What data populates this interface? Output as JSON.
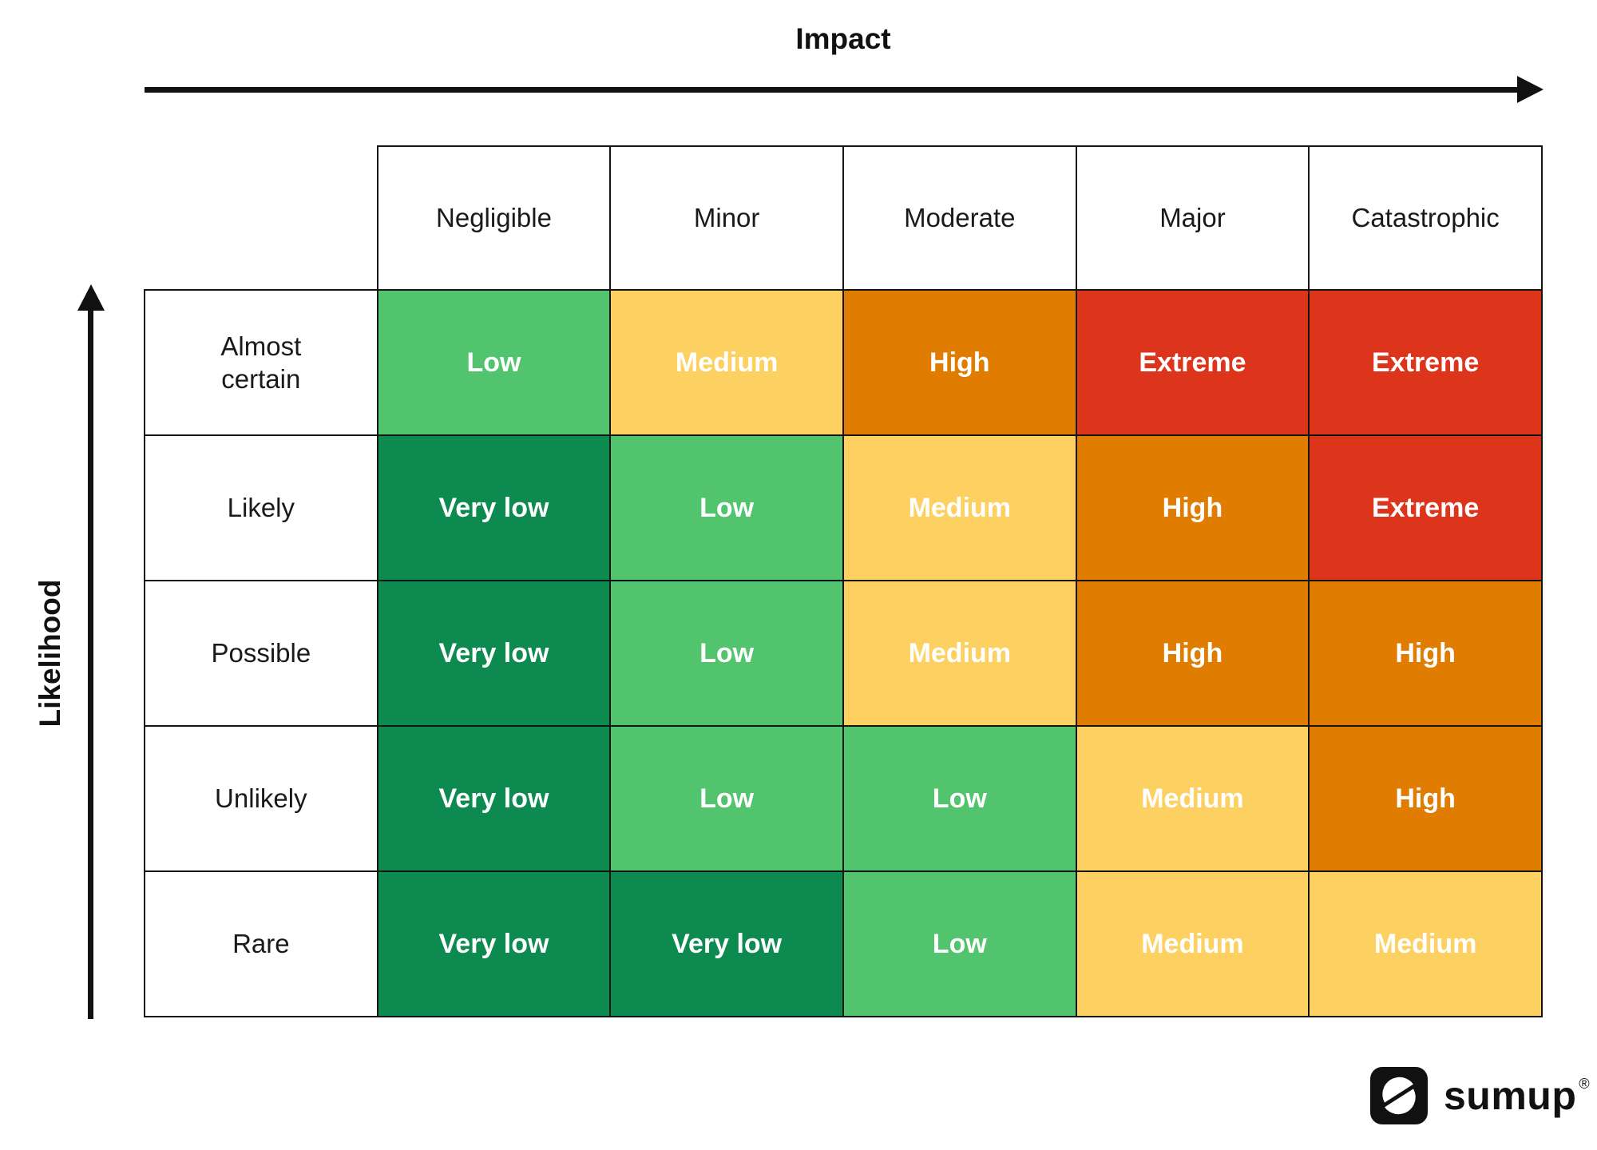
{
  "axes": {
    "x_title": "Impact",
    "y_title": "Likelihood"
  },
  "matrix": {
    "column_headers": [
      "Negligible",
      "Minor",
      "Moderate",
      "Major",
      "Catastrophic"
    ],
    "rows": [
      {
        "label": "Almost certain",
        "cells": [
          "Low",
          "Medium",
          "High",
          "Extreme",
          "Extreme"
        ]
      },
      {
        "label": "Likely",
        "cells": [
          "Very low",
          "Low",
          "Medium",
          "High",
          "Extreme"
        ]
      },
      {
        "label": "Possible",
        "cells": [
          "Very low",
          "Low",
          "Medium",
          "High",
          "High"
        ]
      },
      {
        "label": "Unlikely",
        "cells": [
          "Very low",
          "Low",
          "Low",
          "Medium",
          "High"
        ]
      },
      {
        "label": "Rare",
        "cells": [
          "Very low",
          "Very low",
          "Low",
          "Medium",
          "Medium"
        ]
      }
    ]
  },
  "risk_colors": {
    "Very low": "#0c8a50",
    "Low": "#52c46d",
    "Medium": "#fcd162",
    "High": "#e07c00",
    "Extreme": "#dd341c"
  },
  "logo": {
    "brand": "sumup",
    "registered_mark": "®"
  }
}
